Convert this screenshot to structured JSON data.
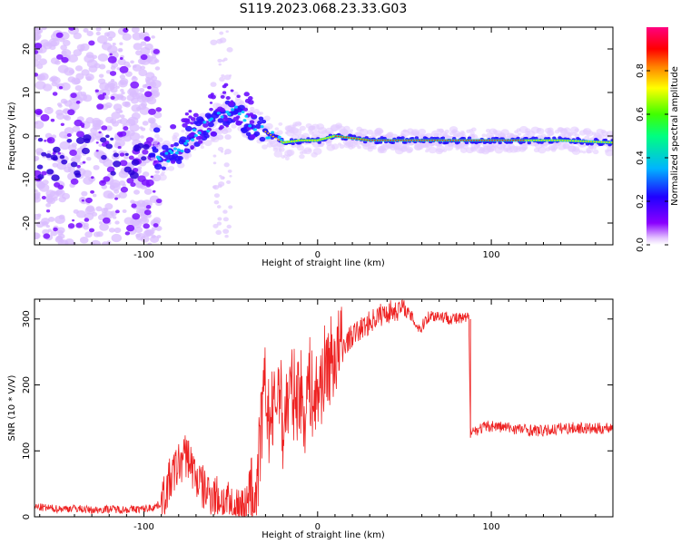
{
  "figure_title": "S119.2023.068.23.33.G03",
  "chart_data": [
    {
      "type": "heatmap",
      "title": "",
      "xlabel": "Height of straight line (km)",
      "ylabel": "Frequency (Hz)",
      "xlim": [
        -163,
        170
      ],
      "ylim": [
        -25,
        25
      ],
      "x_ticks": [
        -100,
        0,
        100
      ],
      "y_ticks": [
        -20,
        -10,
        0,
        10,
        20
      ],
      "colorbar": {
        "label": "Normalized spectral amplitude",
        "range": [
          0.0,
          1.0
        ],
        "ticks": [
          0.0,
          0.2,
          0.4,
          0.6,
          0.8
        ],
        "colors": [
          "#ffffff",
          "#e6c8ff",
          "#8a00ff",
          "#2000ff",
          "#00b4ff",
          "#00ff80",
          "#40ff00",
          "#ffff00",
          "#ff8000",
          "#ff0000",
          "#ff0080"
        ]
      },
      "ridge": {
        "description_points": [
          {
            "x": -92,
            "y": -6
          },
          {
            "x": -80,
            "y": -3
          },
          {
            "x": -65,
            "y": 2
          },
          {
            "x": -48,
            "y": 6
          },
          {
            "x": -40,
            "y": 3
          },
          {
            "x": -30,
            "y": 1
          },
          {
            "x": -20,
            "y": -1.5
          },
          {
            "x": -10,
            "y": -1
          },
          {
            "x": 0,
            "y": -1
          },
          {
            "x": 10,
            "y": 0
          },
          {
            "x": 30,
            "y": -1
          },
          {
            "x": 60,
            "y": -1
          },
          {
            "x": 100,
            "y": -1
          },
          {
            "x": 140,
            "y": -1
          },
          {
            "x": 170,
            "y": -1.5
          }
        ]
      },
      "grid": false
    },
    {
      "type": "line",
      "title": "",
      "xlabel": "Height of straight line (km)",
      "ylabel": "SNR (10 * V/V)",
      "xlim": [
        -163,
        170
      ],
      "ylim": [
        0,
        330
      ],
      "x_ticks": [
        -100,
        0,
        100
      ],
      "y_ticks": [
        0,
        100,
        200,
        300
      ],
      "series": [
        {
          "color": "#ee2222",
          "x": [
            -163,
            -150,
            -140,
            -130,
            -120,
            -110,
            -100,
            -95,
            -90,
            -85,
            -80,
            -75,
            -70,
            -65,
            -60,
            -55,
            -50,
            -45,
            -40,
            -35,
            -32,
            -30,
            -28,
            -25,
            -22,
            -20,
            -18,
            -15,
            -12,
            -10,
            -8,
            -5,
            -2,
            0,
            5,
            10,
            15,
            20,
            25,
            30,
            35,
            40,
            45,
            50,
            55,
            57,
            60,
            62,
            65,
            70,
            75,
            80,
            85,
            87,
            88,
            90,
            95,
            100,
            110,
            120,
            130,
            140,
            150,
            160,
            170
          ],
          "y": [
            15,
            12,
            13,
            10,
            12,
            11,
            12,
            14,
            20,
            55,
            80,
            95,
            60,
            40,
            35,
            25,
            15,
            12,
            15,
            40,
            150,
            200,
            140,
            160,
            210,
            130,
            170,
            190,
            180,
            200,
            150,
            210,
            170,
            190,
            230,
            245,
            260,
            275,
            285,
            295,
            305,
            310,
            315,
            315,
            300,
            290,
            285,
            300,
            305,
            305,
            302,
            300,
            300,
            302,
            135,
            130,
            135,
            138,
            135,
            132,
            130,
            134,
            135,
            133,
            136
          ]
        }
      ],
      "grid": false
    }
  ]
}
